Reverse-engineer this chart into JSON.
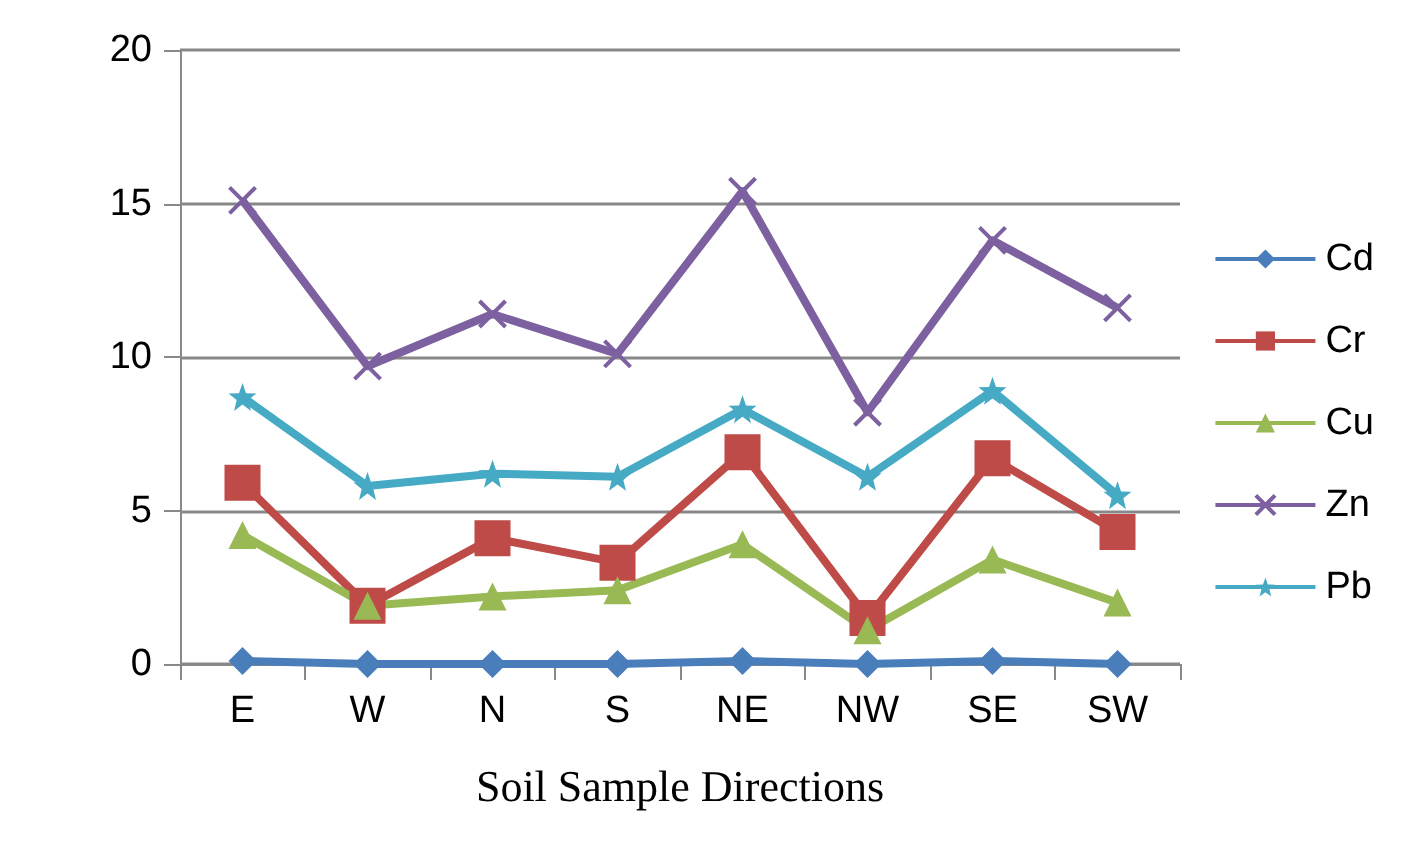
{
  "chart_data": {
    "type": "line",
    "xlabel": "Soil Sample Directions",
    "categories": [
      "E",
      "W",
      "N",
      "S",
      "NE",
      "NW",
      "SE",
      "SW"
    ],
    "series": [
      {
        "name": "Cd",
        "color": "#4a7ebb",
        "marker": "diamond",
        "values": [
          0.1,
          0,
          0,
          0,
          0.1,
          0,
          0.1,
          0
        ]
      },
      {
        "name": "Cr",
        "color": "#be4b48",
        "marker": "square",
        "values": [
          5.9,
          1.9,
          4.1,
          3.3,
          6.9,
          1.5,
          6.7,
          4.3
        ]
      },
      {
        "name": "Cu",
        "color": "#98b954",
        "marker": "triangle",
        "values": [
          4.2,
          1.9,
          2.2,
          2.4,
          3.9,
          1.1,
          3.4,
          2.0
        ]
      },
      {
        "name": "Zn",
        "color": "#7d60a0",
        "marker": "cross",
        "values": [
          15.1,
          9.7,
          11.4,
          10.1,
          15.4,
          8.2,
          13.8,
          11.6
        ]
      },
      {
        "name": "Pb",
        "color": "#46aac5",
        "marker": "star",
        "values": [
          8.7,
          5.8,
          6.2,
          6.1,
          8.3,
          6.1,
          8.9,
          5.5
        ]
      }
    ],
    "ylim": [
      0,
      20
    ],
    "yticks": [
      0,
      5,
      10,
      15,
      20
    ],
    "grid": "y",
    "legend": "right"
  }
}
